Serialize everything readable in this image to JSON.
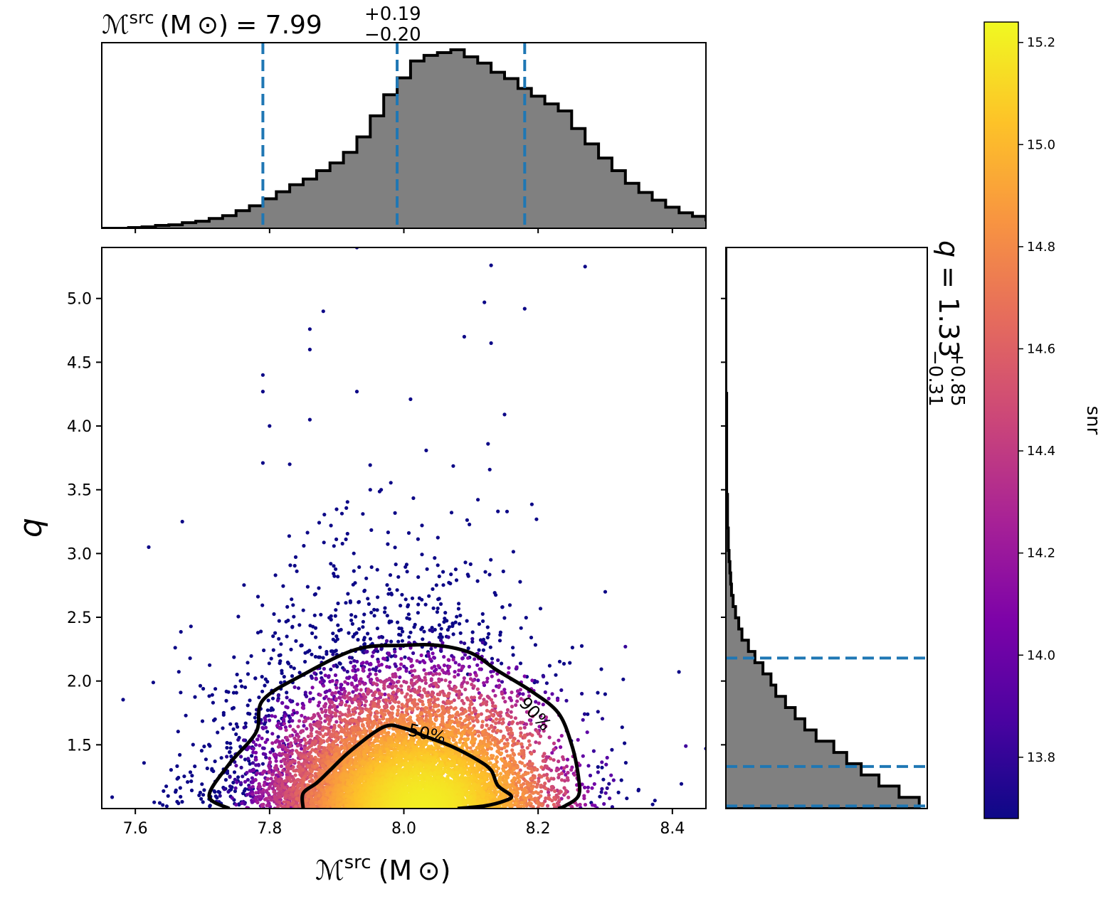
{
  "chart_data": [
    {
      "type": "scatter",
      "panel": "joint",
      "xlabel_main": "ℳ",
      "xlabel_sup": "src",
      "xlabel_unit": "(M ⊙)",
      "ylabel": "q",
      "xlim": [
        7.55,
        8.45
      ],
      "ylim": [
        1.0,
        5.4
      ],
      "xticks": [
        "7.6",
        "7.8",
        "8.0",
        "8.2",
        "8.4"
      ],
      "yticks": [
        "1.5",
        "2.0",
        "2.5",
        "3.0",
        "3.5",
        "4.0",
        "4.5",
        "5.0"
      ],
      "color_by": "snr",
      "colormap": "plasma",
      "point_count": 9000,
      "chirp_mass_mean": 7.99,
      "chirp_mass_sigma": 0.11,
      "contour_labels": [
        "50%",
        "90%"
      ],
      "contours": {
        "p50": [
          [
            7.85,
            1.0
          ],
          [
            7.85,
            1.12
          ],
          [
            7.87,
            1.2
          ],
          [
            7.89,
            1.3
          ],
          [
            7.92,
            1.45
          ],
          [
            7.97,
            1.64
          ],
          [
            8.0,
            1.63
          ],
          [
            8.03,
            1.57
          ],
          [
            8.07,
            1.49
          ],
          [
            8.11,
            1.38
          ],
          [
            8.13,
            1.3
          ],
          [
            8.14,
            1.18
          ],
          [
            8.16,
            1.1
          ],
          [
            8.15,
            1.06
          ],
          [
            8.12,
            1.02
          ],
          [
            8.08,
            1.0
          ]
        ],
        "p90": [
          [
            7.74,
            1.0
          ],
          [
            7.71,
            1.1
          ],
          [
            7.74,
            1.35
          ],
          [
            7.78,
            1.6
          ],
          [
            7.79,
            1.85
          ],
          [
            7.85,
            2.05
          ],
          [
            7.93,
            2.25
          ],
          [
            8.0,
            2.28
          ],
          [
            8.05,
            2.28
          ],
          [
            8.1,
            2.22
          ],
          [
            8.14,
            2.08
          ],
          [
            8.19,
            1.92
          ],
          [
            8.23,
            1.75
          ],
          [
            8.25,
            1.5
          ],
          [
            8.26,
            1.25
          ],
          [
            8.26,
            1.1
          ],
          [
            8.24,
            1.02
          ],
          [
            8.23,
            1.0
          ]
        ]
      },
      "outliers": [
        [
          7.93,
          5.4
        ],
        [
          8.13,
          5.26
        ],
        [
          8.27,
          5.25
        ],
        [
          8.12,
          4.97
        ],
        [
          7.88,
          4.9
        ],
        [
          8.18,
          4.92
        ],
        [
          7.86,
          4.76
        ],
        [
          8.09,
          4.7
        ],
        [
          8.13,
          4.65
        ],
        [
          7.86,
          4.6
        ],
        [
          7.79,
          4.4
        ],
        [
          7.79,
          4.27
        ],
        [
          7.93,
          4.27
        ],
        [
          8.01,
          4.21
        ],
        [
          7.8,
          4.0
        ],
        [
          7.86,
          4.05
        ],
        [
          8.15,
          4.09
        ],
        [
          7.79,
          3.71
        ],
        [
          7.83,
          3.7
        ],
        [
          7.95,
          3.5
        ],
        [
          7.62,
          3.05
        ],
        [
          7.67,
          3.25
        ],
        [
          8.3,
          2.7
        ],
        [
          8.33,
          2.27
        ],
        [
          8.42,
          1.49
        ],
        [
          8.45,
          1.47
        ]
      ]
    },
    {
      "type": "histogram",
      "panel": "top-marginal",
      "title_main": "ℳ",
      "title_sup": "src",
      "title_unit": "(M ⊙)",
      "title_value": "= 7.99",
      "title_plus": "+0.19",
      "title_minus": "−0.20",
      "median": 7.99,
      "lower": 7.79,
      "upper": 8.18,
      "bin_start": 7.55,
      "bin_width": 0.02,
      "counts": [
        0,
        0,
        1,
        2,
        4,
        5,
        8,
        10,
        14,
        18,
        25,
        32,
        42,
        52,
        62,
        70,
        82,
        93,
        108,
        130,
        160,
        190,
        214,
        238,
        246,
        250,
        254,
        244,
        235,
        222,
        213,
        199,
        188,
        177,
        167,
        142,
        120,
        100,
        82,
        64,
        51,
        40,
        30,
        22,
        17,
        12,
        8,
        6,
        4,
        2,
        1,
        1,
        0,
        0,
        0
      ]
    },
    {
      "type": "histogram",
      "panel": "right-marginal",
      "orientation": "horizontal",
      "title_main": "q",
      "title_value": "= 1.33",
      "title_plus": "+0.85",
      "title_minus": "−0.31",
      "median": 1.33,
      "lower": 1.02,
      "upper": 2.18,
      "bin_start": 1.0,
      "bin_width": 0.088,
      "counts": [
        240,
        215,
        190,
        168,
        150,
        134,
        112,
        98,
        86,
        74,
        62,
        56,
        46,
        36,
        28,
        20,
        16,
        12,
        9,
        7,
        6,
        5,
        4,
        3,
        3,
        2,
        2,
        2,
        1,
        1,
        1,
        1,
        1,
        1,
        1,
        1,
        1,
        0,
        0,
        0,
        0,
        0,
        0,
        0,
        0,
        0,
        0,
        0,
        0,
        0
      ],
      "xmax": 250
    },
    {
      "type": "colorbar",
      "label": "snr",
      "colormap": "plasma",
      "range": [
        13.68,
        15.24
      ],
      "ticks": [
        "13.8",
        "14.0",
        "14.2",
        "14.4",
        "14.6",
        "14.8",
        "15.0",
        "15.2"
      ]
    }
  ]
}
